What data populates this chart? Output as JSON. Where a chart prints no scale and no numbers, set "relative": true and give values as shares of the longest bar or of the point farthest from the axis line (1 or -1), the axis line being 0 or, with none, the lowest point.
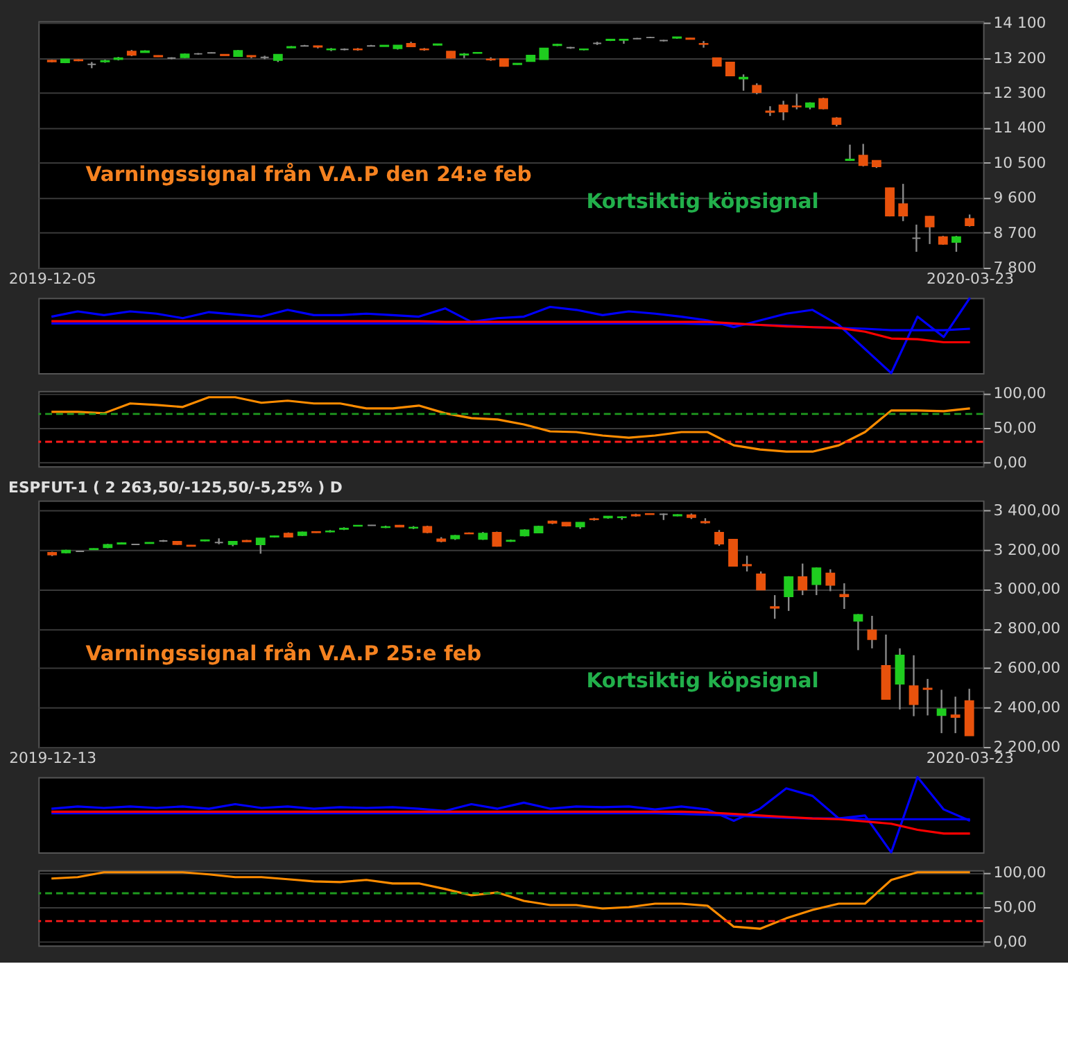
{
  "chart_data": [
    {
      "type": "candlestick",
      "grid": "y",
      "annotations": [
        "Varningssignal från V.A.P den 24:e feb",
        "Kortsiktig köpsignal"
      ],
      "categories": [
        "2019-12-05",
        null,
        null,
        null,
        null,
        null,
        null,
        null,
        null,
        null,
        null,
        null,
        null,
        null,
        null,
        null,
        null,
        null,
        null,
        null,
        null,
        null,
        null,
        null,
        null,
        null,
        null,
        null,
        null,
        null,
        null,
        null,
        null,
        null,
        null,
        null,
        null,
        null,
        null,
        null,
        null,
        null,
        null,
        null,
        null,
        null,
        null,
        null,
        null,
        null,
        null,
        null,
        null,
        null,
        null,
        null,
        null,
        null,
        null,
        null,
        null,
        null,
        null,
        null,
        null,
        null,
        null,
        null,
        null,
        "2020-03-23"
      ],
      "ylim": [
        7800,
        14150
      ],
      "yticks": [
        {
          "value": 7800,
          "label": "7 800"
        },
        {
          "value": 8700,
          "label": "8 700"
        },
        {
          "value": 9600,
          "label": "9 600"
        },
        {
          "value": 10500,
          "label": "10 500"
        },
        {
          "value": 11400,
          "label": "11 400"
        },
        {
          "value": 12300,
          "label": "12 300"
        },
        {
          "value": 13200,
          "label": "13 200"
        },
        {
          "value": 14100,
          "label": "14 100"
        }
      ],
      "ohlc": [
        [
          13140,
          13160,
          13090,
          13110
        ],
        [
          13090,
          13180,
          13070,
          13170
        ],
        [
          13150,
          13170,
          13120,
          13140
        ],
        [
          13040,
          13100,
          12940,
          13040
        ],
        [
          13110,
          13160,
          13080,
          13130
        ],
        [
          13170,
          13230,
          13140,
          13200
        ],
        [
          13370,
          13410,
          13250,
          13280
        ],
        [
          13350,
          13400,
          13340,
          13380
        ],
        [
          13260,
          13270,
          13230,
          13240
        ],
        [
          13200,
          13220,
          13170,
          13200
        ],
        [
          13220,
          13320,
          13200,
          13300
        ],
        [
          13310,
          13330,
          13290,
          13310
        ],
        [
          13335,
          13350,
          13320,
          13335
        ],
        [
          13290,
          13300,
          13270,
          13270
        ],
        [
          13250,
          13410,
          13240,
          13390
        ],
        [
          13260,
          13270,
          13200,
          13240
        ],
        [
          13220,
          13260,
          13170,
          13220
        ],
        [
          13145,
          13300,
          13100,
          13290
        ],
        [
          13470,
          13510,
          13460,
          13490
        ],
        [
          13515,
          13540,
          13500,
          13515
        ],
        [
          13510,
          13520,
          13450,
          13490
        ],
        [
          13420,
          13460,
          13380,
          13430
        ],
        [
          13425,
          13450,
          13400,
          13425
        ],
        [
          13430,
          13460,
          13390,
          13420
        ],
        [
          13515,
          13540,
          13500,
          13515
        ],
        [
          13505,
          13530,
          13500,
          13525
        ],
        [
          13450,
          13530,
          13420,
          13525
        ],
        [
          13570,
          13620,
          13490,
          13500
        ],
        [
          13430,
          13460,
          13390,
          13420
        ],
        [
          13540,
          13570,
          13530,
          13560
        ],
        [
          13370,
          13380,
          13190,
          13210
        ],
        [
          13285,
          13330,
          13200,
          13300
        ],
        [
          13330,
          13350,
          13320,
          13340
        ],
        [
          13170,
          13220,
          13130,
          13160
        ],
        [
          13180,
          13190,
          12980,
          12995
        ],
        [
          13040,
          13070,
          13030,
          13060
        ],
        [
          13120,
          13280,
          13110,
          13270
        ],
        [
          13170,
          13460,
          13160,
          13450
        ],
        [
          13530,
          13570,
          13510,
          13550
        ],
        [
          13470,
          13490,
          13440,
          13470
        ],
        [
          13420,
          13440,
          13400,
          13430
        ],
        [
          13580,
          13620,
          13540,
          13580
        ],
        [
          13660,
          13690,
          13640,
          13680
        ],
        [
          13665,
          13690,
          13570,
          13680
        ],
        [
          13700,
          13720,
          13690,
          13700
        ],
        [
          13730,
          13750,
          13720,
          13730
        ],
        [
          13650,
          13670,
          13630,
          13650
        ],
        [
          13720,
          13750,
          13700,
          13740
        ],
        [
          13710,
          13720,
          13690,
          13690
        ],
        [
          13570,
          13640,
          13470,
          13560
        ],
        [
          13200,
          13210,
          12980,
          13000
        ],
        [
          13090,
          13100,
          12740,
          12750
        ],
        [
          12670,
          12780,
          12360,
          12700
        ],
        [
          12490,
          12550,
          12270,
          12320
        ],
        [
          11830,
          11960,
          11710,
          11810
        ],
        [
          11985,
          12100,
          11600,
          11820
        ],
        [
          11960,
          12280,
          11880,
          11950
        ],
        [
          11940,
          12060,
          11880,
          12040
        ],
        [
          12150,
          12180,
          11880,
          11900
        ],
        [
          11650,
          11680,
          11440,
          11500
        ],
        [
          10570,
          10970,
          10550,
          10590
        ],
        [
          10690,
          10990,
          10410,
          10440
        ],
        [
          10555,
          10560,
          10370,
          10410
        ],
        [
          9850,
          9860,
          9120,
          9140
        ],
        [
          9440,
          9960,
          9000,
          9140
        ],
        [
          8560,
          8910,
          8210,
          8560
        ],
        [
          9120,
          9130,
          8410,
          8860
        ],
        [
          8590,
          8620,
          8390,
          8410
        ],
        [
          8460,
          8620,
          8210,
          8590
        ],
        [
          9060,
          9170,
          8860,
          8890
        ]
      ],
      "colors": [
        "#e8520c",
        "#1fcc1f",
        "#e8520c",
        "#8c8c8c",
        "#1fcc1f",
        "#1fcc1f",
        "#e8520c",
        "#1fcc1f",
        "#e8520c",
        "#8c8c8c",
        "#1fcc1f",
        "#8c8c8c",
        "#8c8c8c",
        "#e8520c",
        "#1fcc1f",
        "#e8520c",
        "#8c8c8c",
        "#1fcc1f",
        "#1fcc1f",
        "#8c8c8c",
        "#e8520c",
        "#1fcc1f",
        "#8c8c8c",
        "#e8520c",
        "#8c8c8c",
        "#1fcc1f",
        "#1fcc1f",
        "#e8520c",
        "#e8520c",
        "#1fcc1f",
        "#e8520c",
        "#1fcc1f",
        "#1fcc1f",
        "#e8520c",
        "#e8520c",
        "#1fcc1f",
        "#1fcc1f",
        "#1fcc1f",
        "#1fcc1f",
        "#8c8c8c",
        "#1fcc1f",
        "#8c8c8c",
        "#1fcc1f",
        "#1fcc1f",
        "#8c8c8c",
        "#8c8c8c",
        "#8c8c8c",
        "#1fcc1f",
        "#e8520c",
        "#e8520c",
        "#e8520c",
        "#e8520c",
        "#1fcc1f",
        "#e8520c",
        "#e8520c",
        "#e8520c",
        "#e8520c",
        "#1fcc1f",
        "#e8520c",
        "#e8520c",
        "#1fcc1f",
        "#e8520c",
        "#e8520c",
        "#e8520c",
        "#e8520c",
        "#8c8c8c",
        "#e8520c",
        "#e8520c",
        "#1fcc1f",
        "#e8520c"
      ]
    },
    {
      "type": "line",
      "relative": true,
      "categories": [
        null,
        null,
        null,
        null,
        null,
        null,
        null,
        null,
        null,
        null,
        null,
        null,
        null,
        null,
        null,
        null,
        null,
        null,
        null,
        null,
        null,
        null,
        null,
        null,
        null,
        null,
        null,
        null,
        null,
        null,
        null,
        null,
        null,
        null,
        null,
        null
      ],
      "series": [
        {
          "color": "#0000ff",
          "values": [
            0.75,
            0.82,
            0.77,
            0.82,
            0.79,
            0.73,
            0.81,
            0.78,
            0.75,
            0.84,
            0.77,
            0.77,
            0.79,
            0.77,
            0.75,
            0.86,
            0.68,
            0.73,
            0.75,
            0.88,
            0.84,
            0.77,
            0.82,
            0.79,
            0.75,
            0.7,
            0.61,
            0.7,
            0.79,
            0.84,
            0.64,
            0.32,
            0,
            0.75,
            0.48,
            1
          ]
        },
        {
          "color": "#0000ff",
          "values": [
            0.66,
            0.66,
            0.66,
            0.66,
            0.66,
            0.66,
            0.66,
            0.66,
            0.66,
            0.66,
            0.66,
            0.66,
            0.66,
            0.66,
            0.66,
            0.66,
            0.66,
            0.66,
            0.66,
            0.66,
            0.66,
            0.66,
            0.66,
            0.66,
            0.66,
            0.65,
            0.65,
            0.64,
            0.63,
            0.61,
            0.6,
            0.59,
            0.57,
            0.57,
            0.57,
            0.59
          ]
        },
        {
          "color": "#ff0000",
          "values": [
            0.69,
            0.69,
            0.69,
            0.69,
            0.69,
            0.69,
            0.69,
            0.69,
            0.69,
            0.69,
            0.69,
            0.69,
            0.69,
            0.69,
            0.69,
            0.68,
            0.68,
            0.68,
            0.68,
            0.68,
            0.68,
            0.68,
            0.68,
            0.68,
            0.68,
            0.68,
            0.66,
            0.64,
            0.62,
            0.61,
            0.6,
            0.55,
            0.46,
            0.45,
            0.41,
            0.41
          ]
        }
      ]
    },
    {
      "type": "line",
      "grid": "y",
      "ylim": [
        -5,
        103
      ],
      "yticks": [
        {
          "value": 0,
          "label": "0,00"
        },
        {
          "value": 50,
          "label": "50,00"
        },
        {
          "value": 100,
          "label": "100,00"
        }
      ],
      "categories": [
        null,
        null,
        null,
        null,
        null,
        null,
        null,
        null,
        null,
        null,
        null,
        null,
        null,
        null,
        null,
        null,
        null,
        null,
        null,
        null,
        null,
        null,
        null,
        null,
        null,
        null,
        null,
        null,
        null,
        null,
        null,
        null,
        null,
        null,
        null,
        null
      ],
      "ref_lines": [
        {
          "axis": "y",
          "value": 70,
          "color": "#1f9a1f",
          "line_style": "dashed"
        },
        {
          "axis": "y",
          "value": 30,
          "color": "#ff1a1a",
          "line_style": "dashed"
        }
      ],
      "series": [
        {
          "color": "#ff8c00",
          "values": [
            73,
            73,
            71,
            85,
            83,
            80,
            94,
            94,
            86,
            89,
            85,
            85,
            78,
            78,
            82,
            71,
            64,
            62,
            55,
            45,
            44,
            39,
            36,
            39,
            44,
            44,
            25,
            19,
            16,
            16,
            25,
            44,
            75,
            75,
            74,
            78
          ]
        }
      ]
    },
    {
      "type": "candlestick",
      "grid": "y",
      "title": "ESPFUT-1 ( 2 263,50/-125,50/-5,25% )  D",
      "annotations": [
        "Varningssignal från V.A.P 25:e feb",
        "Kortsiktig köpsignal"
      ],
      "categories": [
        "2019-12-13",
        null,
        null,
        null,
        null,
        null,
        null,
        null,
        null,
        null,
        null,
        null,
        null,
        null,
        null,
        null,
        null,
        null,
        null,
        null,
        null,
        null,
        null,
        null,
        null,
        null,
        null,
        null,
        null,
        null,
        null,
        null,
        null,
        null,
        null,
        null,
        null,
        null,
        null,
        null,
        null,
        null,
        null,
        null,
        null,
        null,
        null,
        null,
        null,
        null,
        null,
        null,
        null,
        null,
        null,
        null,
        null,
        null,
        null,
        null,
        null,
        null,
        null,
        null,
        null,
        null,
        "2020-03-23"
      ],
      "ylim": [
        2200,
        3450
      ],
      "yticks": [
        {
          "value": 2200,
          "label": "2 200,00"
        },
        {
          "value": 2400,
          "label": "2 400,00"
        },
        {
          "value": 2600,
          "label": "2 600,00"
        },
        {
          "value": 2800,
          "label": "2 800,00"
        },
        {
          "value": 3000,
          "label": "3 000,00"
        },
        {
          "value": 3200,
          "label": "3 200,00"
        },
        {
          "value": 3400,
          "label": "3 400,00"
        }
      ],
      "ohlc": [
        [
          3185,
          3190,
          3168,
          3175
        ],
        [
          3186,
          3200,
          3182,
          3196
        ],
        [
          3192,
          3194,
          3190,
          3192
        ],
        [
          3202,
          3207,
          3200,
          3205
        ],
        [
          3212,
          3230,
          3208,
          3225
        ],
        [
          3230,
          3238,
          3228,
          3234
        ],
        [
          3227,
          3230,
          3224,
          3227
        ],
        [
          3233,
          3238,
          3232,
          3236
        ],
        [
          3245,
          3250,
          3240,
          3245
        ],
        [
          3241,
          3244,
          3225,
          3228
        ],
        [
          3222,
          3224,
          3218,
          3219
        ],
        [
          3246,
          3252,
          3243,
          3249
        ],
        [
          3237,
          3258,
          3228,
          3237
        ],
        [
          3228,
          3243,
          3218,
          3241
        ],
        [
          3246,
          3250,
          3240,
          3242
        ],
        [
          3227,
          3260,
          3180,
          3258
        ],
        [
          3266,
          3272,
          3262,
          3269
        ],
        [
          3283,
          3288,
          3264,
          3266
        ],
        [
          3274,
          3292,
          3270,
          3289
        ],
        [
          3291,
          3293,
          3286,
          3288
        ],
        [
          3292,
          3300,
          3288,
          3294
        ],
        [
          3305,
          3314,
          3300,
          3308
        ],
        [
          3321,
          3325,
          3319,
          3323
        ],
        [
          3324,
          3326,
          3322,
          3324
        ],
        [
          3314,
          3322,
          3310,
          3316
        ],
        [
          3323,
          3326,
          3315,
          3317
        ],
        [
          3311,
          3320,
          3305,
          3313
        ],
        [
          3317,
          3322,
          3284,
          3289
        ],
        [
          3254,
          3264,
          3238,
          3244
        ],
        [
          3257,
          3275,
          3250,
          3271
        ],
        [
          3284,
          3288,
          3280,
          3282
        ],
        [
          3254,
          3290,
          3250,
          3283
        ],
        [
          3287,
          3292,
          3216,
          3219
        ],
        [
          3244,
          3252,
          3240,
          3247
        ],
        [
          3272,
          3304,
          3268,
          3299
        ],
        [
          3287,
          3322,
          3284,
          3318
        ],
        [
          3344,
          3348,
          3330,
          3336
        ],
        [
          3338,
          3340,
          3318,
          3322
        ],
        [
          3318,
          3340,
          3306,
          3338
        ],
        [
          3356,
          3362,
          3348,
          3354
        ],
        [
          3363,
          3371,
          3358,
          3369
        ],
        [
          3364,
          3370,
          3352,
          3366
        ],
        [
          3377,
          3383,
          3368,
          3373
        ],
        [
          3382,
          3384,
          3379,
          3380
        ],
        [
          3380,
          3384,
          3351,
          3380
        ],
        [
          3373,
          3380,
          3370,
          3377
        ],
        [
          3376,
          3384,
          3356,
          3365
        ],
        [
          3342,
          3360,
          3332,
          3338
        ],
        [
          3287,
          3300,
          3220,
          3231
        ],
        [
          3252,
          3254,
          3116,
          3118
        ],
        [
          3124,
          3170,
          3090,
          3120
        ],
        [
          3076,
          3090,
          2996,
          2998
        ],
        [
          2910,
          2970,
          2850,
          2905
        ],
        [
          2963,
          3066,
          2890,
          3062
        ],
        [
          3062,
          3130,
          2970,
          2998
        ],
        [
          3025,
          3110,
          2970,
          3107
        ],
        [
          3080,
          3101,
          2990,
          3021
        ],
        [
          2972,
          3030,
          2900,
          2963
        ],
        [
          2839,
          2874,
          2691,
          2870
        ],
        [
          2792,
          2865,
          2700,
          2746
        ],
        [
          2612,
          2770,
          2440,
          2443
        ],
        [
          2520,
          2700,
          2390,
          2664
        ],
        [
          2509,
          2665,
          2356,
          2416
        ],
        [
          2497,
          2545,
          2360,
          2493
        ],
        [
          2361,
          2490,
          2270,
          2392
        ],
        [
          2361,
          2455,
          2270,
          2351
        ],
        [
          2433,
          2495,
          2258,
          2258
        ]
      ],
      "colors": [
        "#e8520c",
        "#1fcc1f",
        "#8c8c8c",
        "#1fcc1f",
        "#1fcc1f",
        "#1fcc1f",
        "#8c8c8c",
        "#1fcc1f",
        "#8c8c8c",
        "#e8520c",
        "#e8520c",
        "#1fcc1f",
        "#8c8c8c",
        "#1fcc1f",
        "#e8520c",
        "#1fcc1f",
        "#1fcc1f",
        "#e8520c",
        "#1fcc1f",
        "#e8520c",
        "#1fcc1f",
        "#1fcc1f",
        "#1fcc1f",
        "#8c8c8c",
        "#1fcc1f",
        "#e8520c",
        "#1fcc1f",
        "#e8520c",
        "#e8520c",
        "#1fcc1f",
        "#e8520c",
        "#1fcc1f",
        "#e8520c",
        "#1fcc1f",
        "#1fcc1f",
        "#1fcc1f",
        "#e8520c",
        "#e8520c",
        "#1fcc1f",
        "#e8520c",
        "#1fcc1f",
        "#1fcc1f",
        "#e8520c",
        "#e8520c",
        "#8c8c8c",
        "#1fcc1f",
        "#e8520c",
        "#e8520c",
        "#e8520c",
        "#e8520c",
        "#e8520c",
        "#e8520c",
        "#e8520c",
        "#1fcc1f",
        "#e8520c",
        "#1fcc1f",
        "#e8520c",
        "#e8520c",
        "#1fcc1f",
        "#e8520c",
        "#e8520c",
        "#1fcc1f",
        "#e8520c",
        "#e8520c",
        "#1fcc1f",
        "#e8520c",
        "#e8520c"
      ]
    },
    {
      "type": "line",
      "relative": true,
      "categories": [
        null,
        null,
        null,
        null,
        null,
        null,
        null,
        null,
        null,
        null,
        null,
        null,
        null,
        null,
        null,
        null,
        null,
        null,
        null,
        null,
        null,
        null,
        null,
        null,
        null,
        null,
        null,
        null,
        null,
        null,
        null,
        null,
        null,
        null,
        null,
        null
      ],
      "series": [
        {
          "color": "#0000ff",
          "values": [
            0.58,
            0.61,
            0.59,
            0.61,
            0.59,
            0.61,
            0.58,
            0.64,
            0.59,
            0.61,
            0.58,
            0.6,
            0.59,
            0.6,
            0.58,
            0.55,
            0.64,
            0.58,
            0.66,
            0.58,
            0.61,
            0.6,
            0.61,
            0.57,
            0.61,
            0.57,
            0.42,
            0.58,
            0.85,
            0.75,
            0.45,
            0.49,
            0,
            1,
            0.57,
            0.42
          ]
        },
        {
          "color": "#0000ff",
          "values": [
            0.52,
            0.52,
            0.52,
            0.52,
            0.52,
            0.52,
            0.52,
            0.52,
            0.52,
            0.52,
            0.52,
            0.52,
            0.52,
            0.52,
            0.52,
            0.52,
            0.52,
            0.52,
            0.52,
            0.52,
            0.52,
            0.52,
            0.52,
            0.52,
            0.51,
            0.5,
            0.49,
            0.47,
            0.46,
            0.45,
            0.45,
            0.44,
            0.44,
            0.44,
            0.44,
            0.44
          ]
        },
        {
          "color": "#ff0000",
          "values": [
            0.54,
            0.54,
            0.54,
            0.54,
            0.54,
            0.54,
            0.54,
            0.54,
            0.54,
            0.54,
            0.54,
            0.54,
            0.54,
            0.54,
            0.54,
            0.54,
            0.54,
            0.54,
            0.54,
            0.54,
            0.54,
            0.54,
            0.54,
            0.54,
            0.54,
            0.53,
            0.51,
            0.49,
            0.47,
            0.45,
            0.44,
            0.41,
            0.38,
            0.3,
            0.25,
            0.25
          ]
        }
      ]
    },
    {
      "type": "line",
      "grid": "y",
      "ylim": [
        -5,
        103
      ],
      "yticks": [
        {
          "value": 0,
          "label": "0,00"
        },
        {
          "value": 50,
          "label": "50,00"
        },
        {
          "value": 100,
          "label": "100,00"
        }
      ],
      "categories": [
        null,
        null,
        null,
        null,
        null,
        null,
        null,
        null,
        null,
        null,
        null,
        null,
        null,
        null,
        null,
        null,
        null,
        null,
        null,
        null,
        null,
        null,
        null,
        null,
        null,
        null,
        null,
        null,
        null,
        null,
        null,
        null,
        null,
        null,
        null,
        null
      ],
      "ref_lines": [
        {
          "axis": "y",
          "value": 70,
          "color": "#1f9a1f",
          "line_style": "dashed"
        },
        {
          "axis": "y",
          "value": 30,
          "color": "#ff1a1a",
          "line_style": "dashed"
        }
      ],
      "series": [
        {
          "color": "#ff8c00",
          "values": [
            91,
            93,
            100,
            100,
            100,
            100,
            97,
            93,
            93,
            90,
            87,
            86,
            89,
            84,
            84,
            76,
            67,
            71,
            59,
            53,
            53,
            48,
            50,
            55,
            55,
            52,
            22,
            19,
            34,
            46,
            55,
            55,
            89,
            100,
            100,
            100
          ]
        }
      ]
    }
  ]
}
